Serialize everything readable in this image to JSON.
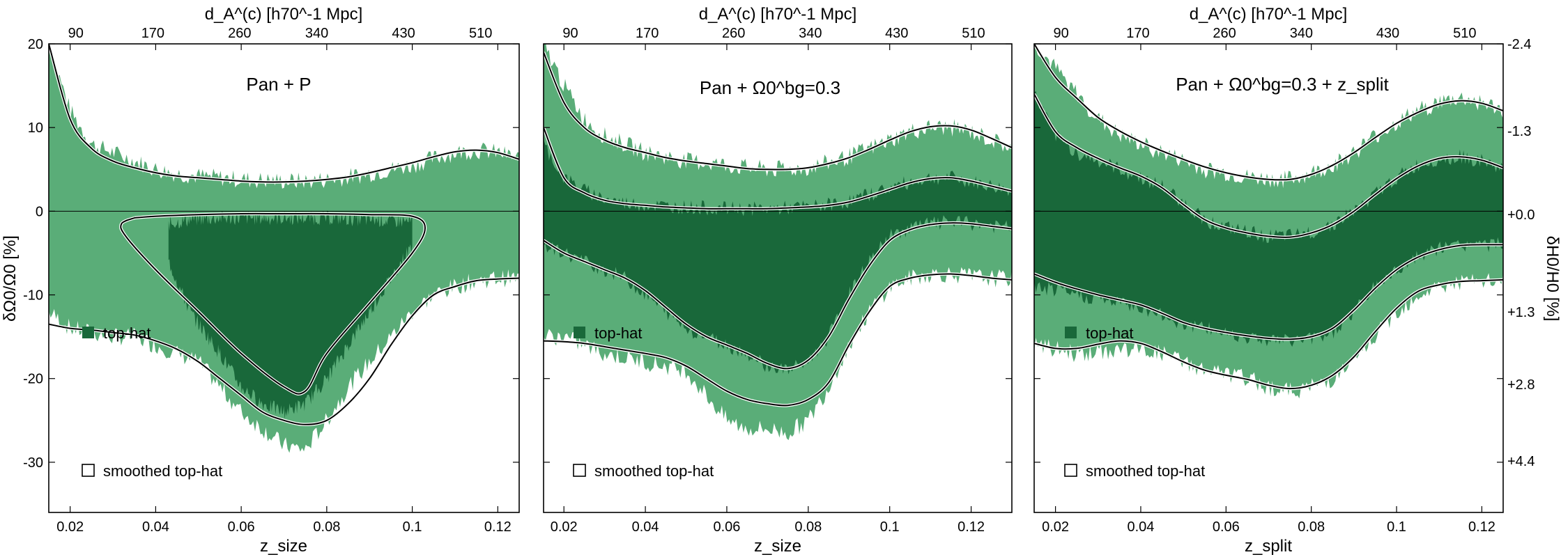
{
  "figure": {
    "top_axis_label": "d_A^(c) [h70^-1 Mpc]",
    "left_axis_label": "δΩ0/Ω0 [%]",
    "right_axis_label": "δH0/H0 [%]",
    "top_ticks": [
      90,
      170,
      260,
      340,
      430,
      510
    ],
    "right_ticks": [
      "-2.4",
      "-1.3",
      "+0.0",
      "+1.3",
      "+2.8",
      "+4.4"
    ],
    "legend": {
      "tophat": "top-hat",
      "smoothed": "smoothed top-hat"
    },
    "colors": {
      "light": "#5aad78",
      "dark": "#19683a",
      "curve": "#000000",
      "frame": "#000000"
    }
  },
  "chart_data": [
    {
      "type": "area",
      "title": "Pan + P",
      "xlabel": "z_size",
      "ylabel": "δΩ0/Ω0 [%]",
      "xlim": [
        0.015,
        0.125
      ],
      "ylim": [
        -36,
        20
      ],
      "xticks": [
        0.02,
        0.04,
        0.06,
        0.08,
        0.1,
        0.12
      ],
      "yticks": [
        20,
        10,
        0,
        -10,
        -20,
        -30
      ],
      "light_band": {
        "x": [
          0.015,
          0.02,
          0.025,
          0.03,
          0.035,
          0.04,
          0.045,
          0.05,
          0.055,
          0.06,
          0.065,
          0.07,
          0.075,
          0.08,
          0.085,
          0.09,
          0.095,
          0.1,
          0.105,
          0.11,
          0.115,
          0.12,
          0.125
        ],
        "upper": [
          20,
          12,
          8,
          7,
          6,
          5,
          4.5,
          4.2,
          4,
          3.8,
          3.7,
          3.6,
          3.6,
          3.8,
          4.1,
          4.5,
          5,
          5.5,
          6.3,
          7,
          7.3,
          7,
          6.3
        ],
        "lower": [
          -12,
          -14,
          -14.5,
          -15,
          -15,
          -16,
          -17,
          -18,
          -21,
          -24,
          -26,
          -28,
          -28.5,
          -25,
          -21,
          -18,
          -15,
          -12,
          -10,
          -9,
          -8.3,
          -8,
          -8
        ]
      },
      "dark_band": {
        "x": [
          0.043,
          0.048,
          0.055,
          0.06,
          0.065,
          0.07,
          0.075,
          0.08,
          0.085,
          0.09,
          0.095,
          0.1
        ],
        "upper": [
          -1.5,
          -1,
          -0.8,
          -0.8,
          -0.8,
          -0.8,
          -0.8,
          -0.8,
          -0.9,
          -1,
          -1.1,
          -1.3
        ],
        "lower": [
          -6,
          -12,
          -17,
          -21,
          -23,
          -24,
          -23,
          -20,
          -16,
          -12,
          -8,
          -4
        ]
      },
      "smoothed_lines": [
        {
          "x": [
            0.015,
            0.02,
            0.025,
            0.03,
            0.035,
            0.04,
            0.045,
            0.05,
            0.055,
            0.06,
            0.065,
            0.07,
            0.075,
            0.08,
            0.085,
            0.09,
            0.095,
            0.1,
            0.105,
            0.11,
            0.115,
            0.12,
            0.125
          ],
          "y": [
            20,
            11,
            7.5,
            6,
            5.2,
            4.6,
            4.2,
            4,
            3.8,
            3.6,
            3.5,
            3.5,
            3.6,
            3.8,
            4.1,
            4.6,
            5.2,
            5.8,
            6.5,
            7.1,
            7.3,
            7.0,
            6.2
          ]
        },
        {
          "x": [
            0.015,
            0.02,
            0.025,
            0.03,
            0.035,
            0.04,
            0.045,
            0.05,
            0.055,
            0.06,
            0.065,
            0.07,
            0.075,
            0.08,
            0.085,
            0.09,
            0.095,
            0.1,
            0.105,
            0.11,
            0.115,
            0.12,
            0.125
          ],
          "y": [
            -13.5,
            -14,
            -14.2,
            -14.5,
            -14.8,
            -15.5,
            -16.5,
            -18,
            -20,
            -22,
            -24,
            -25,
            -25.5,
            -25,
            -23,
            -20,
            -16,
            -12.5,
            -10,
            -9,
            -8.3,
            -8.1,
            -8
          ]
        },
        {
          "x": [
            0.035,
            0.04,
            0.05,
            0.06,
            0.07,
            0.08,
            0.09,
            0.1,
            0.103,
            0.1,
            0.09,
            0.08,
            0.075,
            0.07,
            0.06,
            0.05,
            0.04,
            0.033,
            0.032,
            0.035
          ],
          "y": [
            -0.8,
            -0.6,
            -0.4,
            -0.3,
            -0.3,
            -0.3,
            -0.4,
            -0.6,
            -2,
            -5,
            -11,
            -17,
            -21.5,
            -21,
            -17,
            -12,
            -7,
            -3,
            -1.5,
            -0.8
          ]
        }
      ]
    },
    {
      "type": "area",
      "title": "Pan + Ω0^bg=0.3",
      "xlabel": "z_size",
      "xlim": [
        0.015,
        0.13
      ],
      "ylim": [
        -36,
        20
      ],
      "xticks": [
        0.02,
        0.04,
        0.06,
        0.08,
        0.1,
        0.12
      ],
      "light_band": {
        "x": [
          0.015,
          0.02,
          0.025,
          0.03,
          0.035,
          0.04,
          0.045,
          0.05,
          0.055,
          0.06,
          0.065,
          0.07,
          0.075,
          0.08,
          0.085,
          0.09,
          0.095,
          0.1,
          0.105,
          0.11,
          0.115,
          0.12,
          0.125,
          0.13
        ],
        "upper": [
          20,
          15,
          11,
          9,
          8,
          7,
          6.5,
          6,
          5.8,
          5.5,
          5.2,
          5,
          5,
          5.2,
          5.8,
          6.5,
          7.5,
          8.5,
          9.5,
          10,
          10,
          9.5,
          8.5,
          7.5
        ],
        "lower": [
          -15,
          -15,
          -16,
          -17,
          -17.5,
          -18,
          -18.5,
          -19,
          -22,
          -25,
          -26,
          -26,
          -26.5,
          -25,
          -21,
          -16,
          -12,
          -9,
          -8,
          -7.5,
          -7.5,
          -7.8,
          -8,
          -8
        ]
      },
      "dark_band": {
        "x": [
          0.015,
          0.02,
          0.025,
          0.03,
          0.035,
          0.04,
          0.045,
          0.05,
          0.055,
          0.06,
          0.065,
          0.07,
          0.075,
          0.08,
          0.085,
          0.09,
          0.095,
          0.1,
          0.105,
          0.11,
          0.115,
          0.12,
          0.125,
          0.13
        ],
        "upper": [
          8,
          4,
          2.5,
          1.5,
          1,
          0.8,
          0.6,
          0.5,
          0.4,
          0.3,
          0.3,
          0.3,
          0.4,
          0.5,
          0.8,
          1.2,
          2,
          2.8,
          3.5,
          4,
          4,
          3.5,
          3,
          2.5
        ],
        "lower": [
          -4,
          -5,
          -6,
          -7,
          -8,
          -10,
          -12,
          -14,
          -15,
          -16,
          -17,
          -18.5,
          -19,
          -18,
          -15,
          -10,
          -6,
          -3,
          -2,
          -1.5,
          -1.3,
          -1.5,
          -1.8,
          -2
        ]
      },
      "smoothed_lines": [
        {
          "x": [
            0.015,
            0.02,
            0.025,
            0.03,
            0.035,
            0.04,
            0.045,
            0.05,
            0.055,
            0.06,
            0.065,
            0.07,
            0.075,
            0.08,
            0.085,
            0.09,
            0.095,
            0.1,
            0.105,
            0.11,
            0.115,
            0.12,
            0.125,
            0.13
          ],
          "y": [
            19,
            13,
            10,
            8.5,
            7.6,
            7,
            6.4,
            6,
            5.7,
            5.4,
            5.1,
            5,
            5,
            5.2,
            5.7,
            6.4,
            7.4,
            8.5,
            9.5,
            10.1,
            10.2,
            9.7,
            8.7,
            7.6
          ]
        },
        {
          "x": [
            0.015,
            0.02,
            0.025,
            0.03,
            0.035,
            0.04,
            0.045,
            0.05,
            0.055,
            0.06,
            0.065,
            0.07,
            0.075,
            0.08,
            0.085,
            0.09,
            0.095,
            0.1,
            0.105,
            0.11,
            0.115,
            0.12,
            0.125,
            0.13
          ],
          "y": [
            10,
            4,
            2.2,
            1.3,
            0.9,
            0.7,
            0.5,
            0.4,
            0.3,
            0.3,
            0.3,
            0.3,
            0.4,
            0.5,
            0.7,
            1.1,
            1.8,
            2.6,
            3.4,
            3.9,
            4.0,
            3.6,
            3.0,
            2.4
          ]
        },
        {
          "x": [
            0.015,
            0.02,
            0.025,
            0.03,
            0.035,
            0.04,
            0.045,
            0.05,
            0.055,
            0.06,
            0.065,
            0.07,
            0.075,
            0.08,
            0.085,
            0.09,
            0.095,
            0.1,
            0.105,
            0.11,
            0.115,
            0.12,
            0.125,
            0.13
          ],
          "y": [
            -3.5,
            -5,
            -6,
            -7,
            -8,
            -9.5,
            -11.5,
            -13.5,
            -15,
            -16,
            -17,
            -18.2,
            -18.8,
            -17.8,
            -15,
            -10.5,
            -6.5,
            -3.5,
            -2.2,
            -1.6,
            -1.4,
            -1.5,
            -1.8,
            -2.1
          ]
        },
        {
          "x": [
            0.015,
            0.02,
            0.025,
            0.03,
            0.035,
            0.04,
            0.045,
            0.05,
            0.055,
            0.06,
            0.065,
            0.07,
            0.075,
            0.08,
            0.085,
            0.09,
            0.095,
            0.1,
            0.105,
            0.11,
            0.115,
            0.12,
            0.125,
            0.13
          ],
          "y": [
            -15.5,
            -15.6,
            -15.8,
            -16.2,
            -16.6,
            -17,
            -17.5,
            -18.5,
            -20,
            -21.5,
            -22.5,
            -23,
            -23.2,
            -22.5,
            -20.5,
            -16,
            -12,
            -9,
            -8,
            -7.6,
            -7.5,
            -7.7,
            -8,
            -8.2
          ]
        }
      ]
    },
    {
      "type": "area",
      "title": "Pan + Ω0^bg=0.3 + z_split",
      "xlabel": "z_split",
      "xlim": [
        0.015,
        0.125
      ],
      "ylim": [
        -36,
        20
      ],
      "xticks": [
        0.02,
        0.04,
        0.06,
        0.08,
        0.1,
        0.12
      ],
      "light_band": {
        "x": [
          0.015,
          0.02,
          0.025,
          0.03,
          0.035,
          0.04,
          0.045,
          0.05,
          0.055,
          0.06,
          0.065,
          0.07,
          0.075,
          0.08,
          0.085,
          0.09,
          0.095,
          0.1,
          0.105,
          0.11,
          0.115,
          0.12,
          0.125
        ],
        "upper": [
          20,
          17,
          14,
          11,
          9,
          8,
          7,
          6,
          5,
          4.5,
          4,
          3.8,
          3.8,
          4.5,
          5.5,
          7,
          9,
          10.5,
          12,
          13,
          13.5,
          13,
          12
        ],
        "lower": [
          -16,
          -16.5,
          -17,
          -17,
          -16.5,
          -16.5,
          -17,
          -18,
          -19,
          -19.5,
          -20,
          -21,
          -21.5,
          -21,
          -20,
          -18,
          -15,
          -12,
          -10,
          -9,
          -8.5,
          -8.5,
          -8.3
        ]
      },
      "dark_band": {
        "x": [
          0.015,
          0.02,
          0.025,
          0.03,
          0.035,
          0.04,
          0.045,
          0.05,
          0.055,
          0.06,
          0.065,
          0.07,
          0.075,
          0.08,
          0.085,
          0.09,
          0.095,
          0.1,
          0.105,
          0.11,
          0.115,
          0.12,
          0.125
        ],
        "upper": [
          14,
          9,
          7,
          6,
          5,
          4,
          3,
          1,
          -1,
          -2,
          -2.5,
          -3,
          -3,
          -2.5,
          -1.5,
          0,
          2,
          4,
          5.5,
          6.3,
          6.5,
          6,
          5
        ],
        "lower": [
          -9,
          -9.5,
          -10,
          -10.5,
          -11,
          -11.5,
          -12.5,
          -13.5,
          -14,
          -14.5,
          -15,
          -15.3,
          -15.5,
          -15.2,
          -14.5,
          -12,
          -9,
          -7,
          -5.5,
          -4.5,
          -4,
          -4,
          -4
        ]
      },
      "smoothed_lines": [
        {
          "x": [
            0.015,
            0.02,
            0.025,
            0.03,
            0.035,
            0.04,
            0.045,
            0.05,
            0.055,
            0.06,
            0.065,
            0.07,
            0.075,
            0.08,
            0.085,
            0.09,
            0.095,
            0.1,
            0.105,
            0.11,
            0.115,
            0.12,
            0.125
          ],
          "y": [
            20,
            16,
            13.5,
            11.2,
            9.6,
            8.3,
            7.2,
            6.2,
            5.3,
            4.6,
            4.1,
            3.8,
            3.8,
            4.4,
            5.5,
            7,
            8.8,
            10.5,
            11.8,
            12.8,
            13.2,
            12.9,
            12
          ]
        },
        {
          "x": [
            0.015,
            0.02,
            0.025,
            0.03,
            0.035,
            0.04,
            0.045,
            0.05,
            0.055,
            0.06,
            0.065,
            0.07,
            0.075,
            0.08,
            0.085,
            0.09,
            0.095,
            0.1,
            0.105,
            0.11,
            0.115,
            0.12,
            0.125
          ],
          "y": [
            14,
            9.5,
            7.6,
            6.3,
            5.2,
            4.2,
            2.8,
            0.8,
            -1,
            -2,
            -2.6,
            -3,
            -3.1,
            -2.6,
            -1.6,
            0,
            2,
            3.9,
            5.4,
            6.3,
            6.5,
            6.1,
            5.2
          ]
        },
        {
          "x": [
            0.015,
            0.02,
            0.025,
            0.03,
            0.035,
            0.04,
            0.045,
            0.05,
            0.055,
            0.06,
            0.065,
            0.07,
            0.075,
            0.08,
            0.085,
            0.09,
            0.095,
            0.1,
            0.105,
            0.11,
            0.115,
            0.12,
            0.125
          ],
          "y": [
            -7.5,
            -8.5,
            -9.3,
            -10,
            -10.6,
            -11.2,
            -12.2,
            -13.3,
            -14,
            -14.5,
            -14.9,
            -15.2,
            -15.3,
            -15,
            -14,
            -11.8,
            -9.2,
            -7,
            -5.5,
            -4.6,
            -4.1,
            -4,
            -4
          ]
        },
        {
          "x": [
            0.015,
            0.02,
            0.025,
            0.03,
            0.035,
            0.04,
            0.045,
            0.05,
            0.055,
            0.06,
            0.065,
            0.07,
            0.075,
            0.08,
            0.085,
            0.09,
            0.095,
            0.1,
            0.105,
            0.11,
            0.115,
            0.12,
            0.125
          ],
          "y": [
            -15.8,
            -16.4,
            -16.4,
            -15.9,
            -15.5,
            -15.8,
            -16.8,
            -18,
            -19,
            -19.6,
            -20.1,
            -20.8,
            -21.2,
            -20.8,
            -19.6,
            -17.4,
            -14.4,
            -11.6,
            -9.6,
            -8.8,
            -8.4,
            -8.3,
            -8.2
          ]
        }
      ]
    }
  ]
}
